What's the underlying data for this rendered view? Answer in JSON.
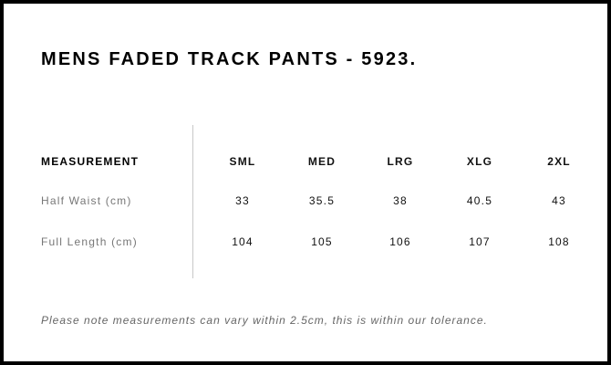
{
  "title": "MENS FADED TRACK PANTS - 5923.",
  "table": {
    "header": [
      "MEASUREMENT",
      "SML",
      "MED",
      "LRG",
      "XLG",
      "2XL"
    ],
    "rows": [
      {
        "label": "Half Waist (cm)",
        "values": [
          "33",
          "35.5",
          "38",
          "40.5",
          "43"
        ]
      },
      {
        "label": "Full Length (cm)",
        "values": [
          "104",
          "105",
          "106",
          "107",
          "108"
        ]
      }
    ]
  },
  "note": "Please note measurements can vary within 2.5cm, this is within our tolerance."
}
